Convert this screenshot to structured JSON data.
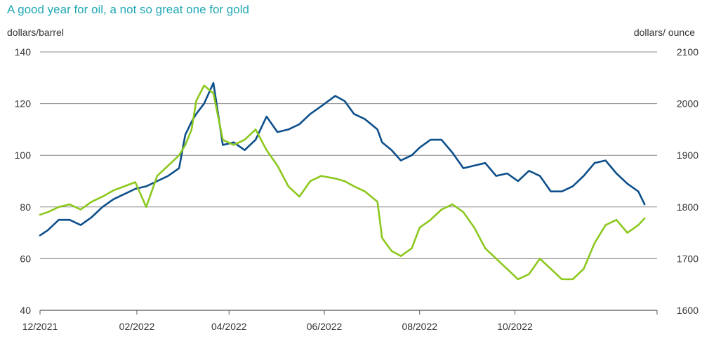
{
  "chart_data": {
    "type": "line",
    "title": "A good year for oil, a not so great one for gold",
    "ylabel_left": "dollars/barrel",
    "ylabel_right": "dollars/ ounce",
    "x_tick_labels": [
      "12/2021",
      "02/2022",
      "04/2022",
      "06/2022",
      "08/2022",
      "10/2022"
    ],
    "x_ticks": [
      "2021-12-01",
      "2022-02-01",
      "2022-04-01",
      "2022-06-01",
      "2022-08-01",
      "2022-10-01"
    ],
    "xlim": [
      "2021-12-01",
      "2022-12-31"
    ],
    "ylim_left": [
      40,
      140
    ],
    "ylim_right": [
      1600,
      2100
    ],
    "yticks_left": [
      40,
      60,
      80,
      100,
      120,
      140
    ],
    "yticks_right": [
      1600,
      1700,
      1800,
      1900,
      2000,
      2100
    ],
    "grid": true,
    "series": [
      {
        "name": "",
        "axis": "left",
        "color": "#0d4f8b",
        "x": [
          "2021-12-01",
          "2021-12-06",
          "2021-12-13",
          "2021-12-20",
          "2021-12-27",
          "2022-01-03",
          "2022-01-10",
          "2022-01-17",
          "2022-01-24",
          "2022-01-31",
          "2022-02-07",
          "2022-02-14",
          "2022-02-21",
          "2022-02-28",
          "2022-03-04",
          "2022-03-08",
          "2022-03-11",
          "2022-03-16",
          "2022-03-22",
          "2022-03-28",
          "2022-04-04",
          "2022-04-11",
          "2022-04-18",
          "2022-04-25",
          "2022-05-02",
          "2022-05-09",
          "2022-05-16",
          "2022-05-23",
          "2022-05-30",
          "2022-06-08",
          "2022-06-14",
          "2022-06-20",
          "2022-06-27",
          "2022-07-05",
          "2022-07-08",
          "2022-07-14",
          "2022-07-20",
          "2022-07-27",
          "2022-08-01",
          "2022-08-08",
          "2022-08-15",
          "2022-08-22",
          "2022-08-29",
          "2022-09-05",
          "2022-09-12",
          "2022-09-19",
          "2022-09-26",
          "2022-10-03",
          "2022-10-10",
          "2022-10-17",
          "2022-10-24",
          "2022-10-31",
          "2022-11-07",
          "2022-11-14",
          "2022-11-21",
          "2022-11-28",
          "2022-12-05",
          "2022-12-12",
          "2022-12-19",
          "2022-12-23"
        ],
        "values": [
          69,
          71,
          75,
          75,
          73,
          76,
          80,
          83,
          85,
          87,
          88,
          90,
          92,
          95,
          108,
          113,
          116,
          120,
          128,
          104,
          105,
          102,
          106,
          115,
          109,
          110,
          112,
          116,
          119,
          123,
          121,
          116,
          114,
          110,
          105,
          102,
          98,
          100,
          103,
          106,
          106,
          101,
          95,
          96,
          97,
          92,
          93,
          90,
          94,
          92,
          86,
          86,
          88,
          92,
          97,
          98,
          93,
          89,
          86,
          81
        ]
      },
      {
        "name": "",
        "axis": "right",
        "color": "#8cc81e",
        "x": [
          "2021-12-01",
          "2021-12-06",
          "2021-12-13",
          "2021-12-20",
          "2021-12-27",
          "2022-01-03",
          "2022-01-10",
          "2022-01-17",
          "2022-01-24",
          "2022-01-31",
          "2022-02-07",
          "2022-02-14",
          "2022-02-21",
          "2022-02-28",
          "2022-03-04",
          "2022-03-08",
          "2022-03-11",
          "2022-03-16",
          "2022-03-22",
          "2022-03-28",
          "2022-04-04",
          "2022-04-11",
          "2022-04-18",
          "2022-04-25",
          "2022-05-02",
          "2022-05-09",
          "2022-05-16",
          "2022-05-23",
          "2022-05-30",
          "2022-06-08",
          "2022-06-14",
          "2022-06-20",
          "2022-06-27",
          "2022-07-05",
          "2022-07-08",
          "2022-07-14",
          "2022-07-20",
          "2022-07-27",
          "2022-08-01",
          "2022-08-08",
          "2022-08-15",
          "2022-08-22",
          "2022-08-29",
          "2022-09-05",
          "2022-09-12",
          "2022-09-19",
          "2022-09-26",
          "2022-10-03",
          "2022-10-10",
          "2022-10-17",
          "2022-10-24",
          "2022-10-31",
          "2022-11-07",
          "2022-11-14",
          "2022-11-21",
          "2022-11-28",
          "2022-12-05",
          "2022-12-12",
          "2022-12-19",
          "2022-12-23"
        ],
        "values": [
          1785,
          1790,
          1800,
          1805,
          1795,
          1810,
          1820,
          1832,
          1840,
          1848,
          1800,
          1860,
          1880,
          1900,
          1920,
          1950,
          2005,
          2035,
          2020,
          1930,
          1920,
          1930,
          1950,
          1910,
          1880,
          1840,
          1820,
          1850,
          1860,
          1855,
          1850,
          1840,
          1830,
          1810,
          1740,
          1715,
          1705,
          1720,
          1760,
          1775,
          1795,
          1805,
          1790,
          1760,
          1720,
          1700,
          1680,
          1660,
          1670,
          1700,
          1680,
          1660,
          1660,
          1680,
          1730,
          1765,
          1775,
          1750,
          1765,
          1778
        ]
      }
    ]
  }
}
